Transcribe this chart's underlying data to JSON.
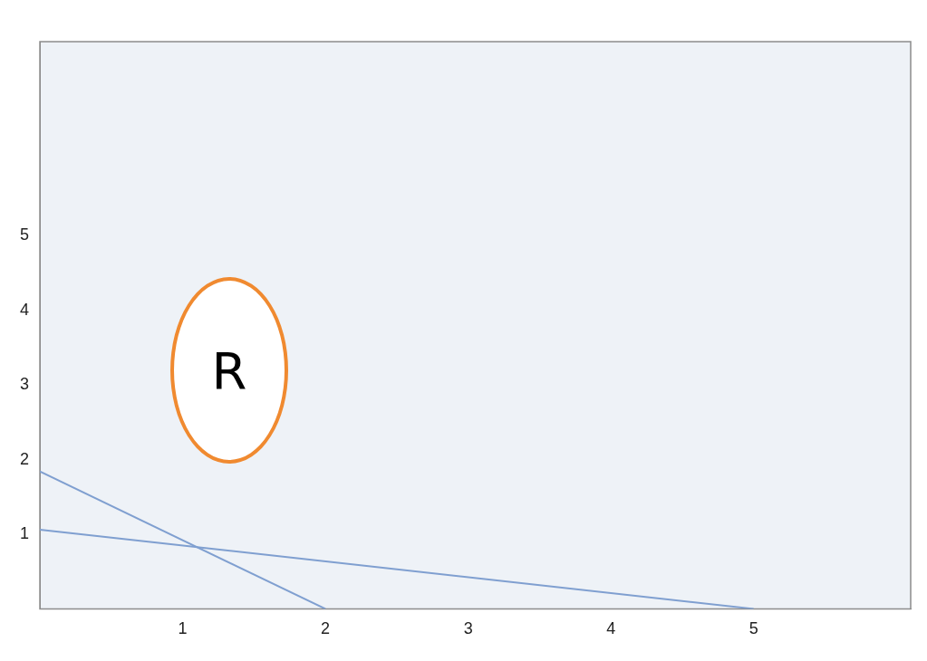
{
  "chart_data": {
    "type": "line",
    "series": [
      {
        "color": "#7f9fd0",
        "x": [
          0,
          2
        ],
        "values": [
          1.84,
          0
        ]
      },
      {
        "color": "#7f9fd0",
        "x": [
          0,
          5
        ],
        "values": [
          1.06,
          0
        ]
      }
    ],
    "xlim": [
      0,
      6.1
    ],
    "xticks": [
      1,
      2,
      3,
      4,
      5
    ],
    "ylim": [
      0,
      7.6
    ],
    "yticks": [
      1,
      2,
      3,
      4,
      5
    ],
    "grid": false,
    "legend": false,
    "marker": "none",
    "line_style": "solid",
    "annotations": [
      "R"
    ]
  }
}
